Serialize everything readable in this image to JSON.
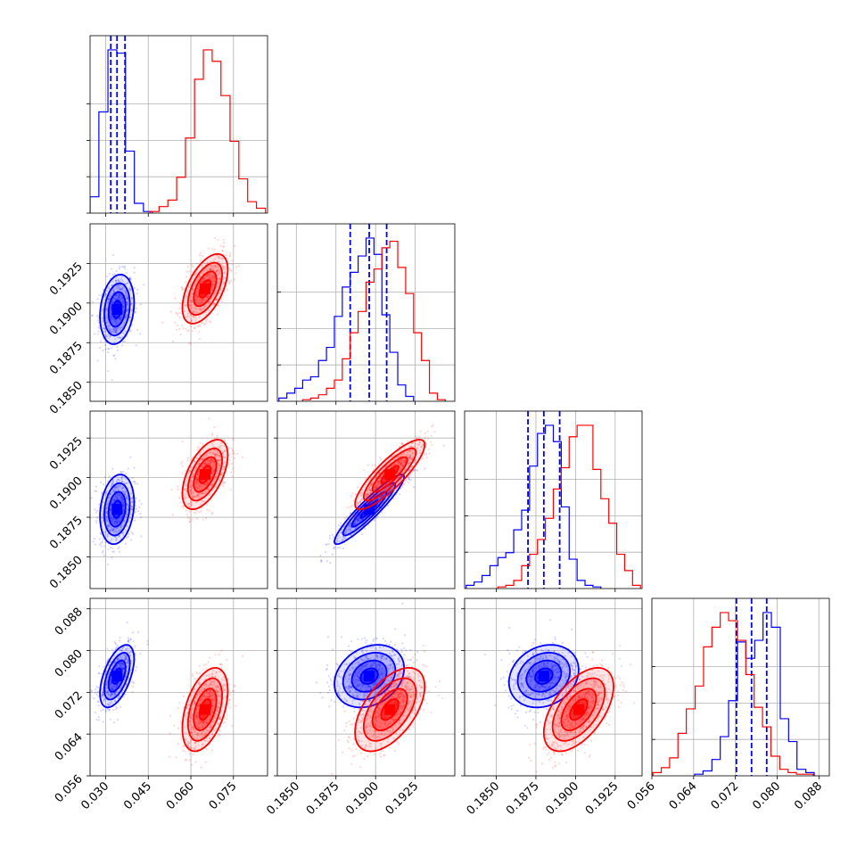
{
  "chart_data": {
    "type": "corner",
    "parameters": [
      {
        "ticks": [
          0.03,
          0.045,
          0.06,
          0.075
        ],
        "tick_labels": [
          "0.030",
          "0.045",
          "0.060",
          "0.075"
        ],
        "range": [
          0.0245,
          0.087
        ]
      },
      {
        "ticks": [
          0.185,
          0.1875,
          0.19,
          0.1925
        ],
        "tick_labels": [
          "0.1850",
          "0.1875",
          "0.1900",
          "0.1925"
        ],
        "range": [
          0.1838,
          0.195
        ]
      },
      {
        "ticks": [
          0.185,
          0.1875,
          0.19,
          0.1925
        ],
        "tick_labels": [
          "0.1850",
          "0.1875",
          "0.1900",
          "0.1925"
        ],
        "range": [
          0.183,
          0.1942
        ]
      },
      {
        "ticks": [
          0.056,
          0.064,
          0.072,
          0.08,
          0.088
        ],
        "tick_labels": [
          "0.056",
          "0.064",
          "0.072",
          "0.080",
          "0.088"
        ],
        "range": [
          0.056,
          0.09
        ]
      }
    ],
    "series": [
      {
        "color": "#0000ff",
        "quantiles": [
          [
            0.0318,
            0.034,
            0.0368
          ],
          [
            0.1884,
            0.1896,
            0.1907
          ],
          [
            0.187,
            0.188,
            0.189
          ],
          [
            0.0722,
            0.0751,
            0.078
          ]
        ],
        "means": [
          0.034,
          0.1896,
          0.188,
          0.0751
        ],
        "sigmas": [
          0.003,
          0.0011,
          0.0011,
          0.003
        ],
        "correlations": {
          "1-0": 0.2,
          "2-0": 0.2,
          "2-1": 0.93,
          "3-0": 0.55,
          "3-1": 0.25,
          "3-2": 0.2
        },
        "histograms": [
          {
            "edges": [
              0.0245,
              0.0276,
              0.0308,
              0.0339,
              0.037,
              0.0401,
              0.0433,
              0.0464
            ],
            "counts": [
              0.1,
              0.62,
              1.0,
              0.98,
              0.38,
              0.06,
              0.01
            ]
          },
          {
            "edges": [
              0.1839,
              0.1844,
              0.1849,
              0.1854,
              0.1859,
              0.1864,
              0.1869,
              0.1874,
              0.1879,
              0.1884,
              0.1889,
              0.1894,
              0.1899,
              0.1904,
              0.1909,
              0.1914,
              0.1919,
              0.1924
            ],
            "counts": [
              0.02,
              0.05,
              0.08,
              0.13,
              0.15,
              0.25,
              0.33,
              0.52,
              0.7,
              0.79,
              0.89,
              1.0,
              0.9,
              0.53,
              0.3,
              0.1,
              0.03
            ]
          },
          {
            "edges": [
              0.1831,
              0.1836,
              0.1841,
              0.1846,
              0.1851,
              0.1856,
              0.1861,
              0.1866,
              0.1871,
              0.1876,
              0.1881,
              0.1886,
              0.1891,
              0.1896,
              0.1901,
              0.1906,
              0.1911,
              0.1916
            ],
            "counts": [
              0.02,
              0.04,
              0.08,
              0.14,
              0.19,
              0.22,
              0.36,
              0.48,
              0.75,
              0.95,
              1.0,
              0.9,
              0.5,
              0.18,
              0.05,
              0.02,
              0.01
            ]
          },
          {
            "edges": [
              0.0642,
              0.0658,
              0.0675,
              0.0691,
              0.0707,
              0.0724,
              0.074,
              0.0757,
              0.0773,
              0.0789,
              0.0806,
              0.0822,
              0.0838,
              0.0855,
              0.0871
            ],
            "counts": [
              0.01,
              0.03,
              0.1,
              0.24,
              0.46,
              0.82,
              0.72,
              0.83,
              1.0,
              0.91,
              0.35,
              0.21,
              0.04,
              0.02
            ]
          }
        ]
      },
      {
        "color": "#ff0000",
        "quantiles": null,
        "means": [
          0.065,
          0.1909,
          0.1902,
          0.0687
        ],
        "sigmas": [
          0.004,
          0.0011,
          0.0011,
          0.004
        ],
        "correlations": {
          "1-0": 0.55,
          "2-0": 0.55,
          "2-1": 0.85,
          "3-0": 0.45,
          "3-1": 0.55,
          "3-2": 0.55
        },
        "histograms": [
          {
            "edges": [
              0.0456,
              0.0488,
              0.0519,
              0.055,
              0.0581,
              0.0613,
              0.0644,
              0.0675,
              0.0706,
              0.0738,
              0.0769,
              0.08,
              0.0831,
              0.0863
            ],
            "counts": [
              0.01,
              0.04,
              0.08,
              0.22,
              0.46,
              0.82,
              1.0,
              0.93,
              0.72,
              0.44,
              0.21,
              0.07,
              0.03
            ]
          },
          {
            "edges": [
              0.1854,
              0.1859,
              0.1864,
              0.1869,
              0.1874,
              0.1879,
              0.1884,
              0.1889,
              0.1894,
              0.1899,
              0.1904,
              0.1909,
              0.1914,
              0.1919,
              0.1924,
              0.1929,
              0.1934,
              0.1939,
              0.1944
            ],
            "counts": [
              0.01,
              0.02,
              0.04,
              0.08,
              0.13,
              0.26,
              0.42,
              0.55,
              0.73,
              0.81,
              0.94,
              0.98,
              0.82,
              0.66,
              0.42,
              0.25,
              0.05,
              0.01
            ]
          },
          {
            "edges": [
              0.1851,
              0.1856,
              0.1861,
              0.1866,
              0.1871,
              0.1876,
              0.1881,
              0.1886,
              0.1891,
              0.1896,
              0.1901,
              0.1906,
              0.1911,
              0.1916,
              0.1921,
              0.1926,
              0.1931,
              0.1936,
              0.1941
            ],
            "counts": [
              0.01,
              0.02,
              0.05,
              0.14,
              0.21,
              0.3,
              0.43,
              0.61,
              0.74,
              0.93,
              1.0,
              1.0,
              0.73,
              0.55,
              0.4,
              0.21,
              0.11,
              0.02
            ]
          },
          {
            "edges": [
              0.0562,
              0.0578,
              0.0594,
              0.061,
              0.0626,
              0.0643,
              0.0659,
              0.0675,
              0.0691,
              0.0707,
              0.0724,
              0.074,
              0.0756,
              0.0772,
              0.0788,
              0.0805,
              0.0821,
              0.0837,
              0.0853,
              0.0869
            ],
            "counts": [
              0.02,
              0.05,
              0.11,
              0.26,
              0.41,
              0.55,
              0.79,
              0.91,
              1.0,
              0.95,
              0.83,
              0.62,
              0.42,
              0.3,
              0.12,
              0.04,
              0.02,
              0.01,
              0.01
            ]
          }
        ]
      }
    ],
    "sigma_levels": [
      0.5,
      1.0,
      1.5,
      2.0
    ],
    "grid": true,
    "legend": "none"
  }
}
